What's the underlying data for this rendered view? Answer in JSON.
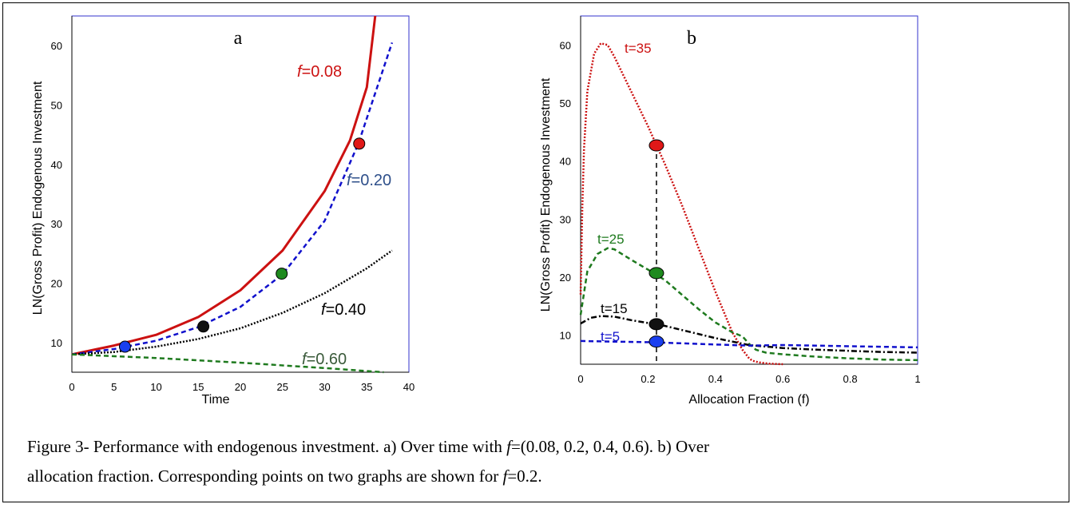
{
  "chart_data": [
    {
      "type": "line",
      "panel_label": "a",
      "xlabel": "Time",
      "ylabel": "LN(Gross Profit) Endogenous Investment",
      "xlim": [
        0,
        40
      ],
      "ylim": [
        5,
        65
      ],
      "xticks": [
        "0",
        "5",
        "10",
        "15",
        "20",
        "25",
        "30",
        "35",
        "40"
      ],
      "yticks": [
        "10",
        "20",
        "30",
        "40",
        "50",
        "60"
      ],
      "series": [
        {
          "name": "f=0.08",
          "label_prefix": "f",
          "label_value": "=0.08",
          "color": "#cc1111",
          "style": "solid",
          "x": [
            0,
            5,
            10,
            15,
            20,
            25,
            30,
            33,
            35,
            36
          ],
          "y": [
            8.0,
            9.5,
            11.3,
            14.3,
            18.8,
            25.5,
            35.5,
            44.0,
            53.0,
            65.0
          ]
        },
        {
          "name": "f=0.20",
          "label_prefix": "f",
          "label_value": "=0.20",
          "color": "#1111cc",
          "style": "dashed",
          "x": [
            0,
            5,
            10,
            15,
            20,
            25,
            30,
            34,
            38
          ],
          "y": [
            8.0,
            8.9,
            10.3,
            12.6,
            16.0,
            21.5,
            30.5,
            43.5,
            60.5
          ]
        },
        {
          "name": "f=0.40",
          "label_prefix": "f",
          "label_value": "=0.40",
          "color": "#000000",
          "style": "dotted",
          "x": [
            0,
            5,
            10,
            15,
            20,
            25,
            30,
            35,
            38
          ],
          "y": [
            8.0,
            8.4,
            9.3,
            10.6,
            12.4,
            15.0,
            18.3,
            22.5,
            25.5
          ]
        },
        {
          "name": "f=0.60",
          "label_prefix": "f",
          "label_value": "=0.60",
          "color": "#1e7a1e",
          "style": "dashed",
          "x": [
            0,
            10,
            20,
            30,
            37
          ],
          "y": [
            8.0,
            7.4,
            6.6,
            5.7,
            5.0
          ]
        }
      ],
      "markers": [
        {
          "x": 6.3,
          "y": 9.3,
          "color": "#1a3ff0"
        },
        {
          "x": 15.6,
          "y": 12.7,
          "color": "#111111"
        },
        {
          "x": 24.9,
          "y": 21.6,
          "color": "#1e8a1e"
        },
        {
          "x": 34.1,
          "y": 43.5,
          "color": "#e01818"
        }
      ]
    },
    {
      "type": "line",
      "panel_label": "b",
      "xlabel": "Allocation Fraction (f)",
      "ylabel": "LN(Gross Profit) Endogenous Investment",
      "xlim": [
        0,
        1
      ],
      "ylim": [
        5,
        65
      ],
      "xticks": [
        "0",
        "0.2",
        "0.4",
        "0.6",
        "0.8",
        "1"
      ],
      "yticks": [
        "10",
        "20",
        "30",
        "40",
        "50",
        "60"
      ],
      "series": [
        {
          "name": "t=35",
          "color": "#cc1111",
          "style": "dotted",
          "x": [
            0,
            0.005,
            0.01,
            0.02,
            0.04,
            0.06,
            0.08,
            0.1,
            0.15,
            0.2,
            0.25,
            0.3,
            0.35,
            0.4,
            0.45,
            0.48,
            0.5,
            0.51,
            0.53,
            0.56,
            0.6
          ],
          "y": [
            17.0,
            32.0,
            42.0,
            52.0,
            58.5,
            60.3,
            60.0,
            58.0,
            52.0,
            46.0,
            39.5,
            32.5,
            25.0,
            17.5,
            10.5,
            7.5,
            6.0,
            5.6,
            5.3,
            5.1,
            5.0
          ]
        },
        {
          "name": "t=25",
          "color": "#1e7a1e",
          "style": "dashed",
          "x": [
            0,
            0.02,
            0.05,
            0.08,
            0.1,
            0.15,
            0.2,
            0.25,
            0.3,
            0.35,
            0.4,
            0.45,
            0.48,
            0.5,
            0.52,
            0.55,
            0.6,
            0.7,
            0.8,
            0.9,
            1.0
          ],
          "y": [
            13.5,
            21.0,
            24.0,
            25.0,
            24.8,
            23.0,
            21.3,
            19.5,
            17.0,
            14.5,
            12.2,
            10.5,
            9.8,
            8.5,
            7.5,
            7.0,
            6.7,
            6.3,
            6.0,
            5.8,
            5.7
          ]
        },
        {
          "name": "t=15",
          "color": "#000000",
          "style": "dashdot",
          "x": [
            0,
            0.03,
            0.06,
            0.1,
            0.15,
            0.2,
            0.25,
            0.3,
            0.4,
            0.5,
            0.6,
            0.7,
            0.8,
            0.9,
            1.0
          ],
          "y": [
            12.0,
            13.0,
            13.3,
            13.2,
            12.6,
            12.1,
            11.6,
            10.9,
            9.5,
            8.3,
            7.8,
            7.5,
            7.3,
            7.1,
            7.0
          ]
        },
        {
          "name": "t=5",
          "color": "#1111cc",
          "style": "dashed",
          "x": [
            0,
            0.1,
            0.2,
            0.3,
            0.4,
            0.5,
            0.6,
            0.7,
            0.8,
            0.9,
            1.0
          ],
          "y": [
            9.0,
            8.9,
            8.8,
            8.6,
            8.4,
            8.2,
            8.3,
            8.2,
            8.1,
            8.0,
            7.9
          ]
        }
      ],
      "markers": [
        {
          "x": 0.225,
          "y": 42.7,
          "color": "#e01818"
        },
        {
          "x": 0.225,
          "y": 20.7,
          "color": "#1e8a1e"
        },
        {
          "x": 0.225,
          "y": 11.9,
          "color": "#111111"
        },
        {
          "x": 0.225,
          "y": 8.9,
          "color": "#1a3ff0"
        }
      ],
      "reference_line_x": 0.225
    }
  ],
  "caption": {
    "line1_a": "Figure 3- Performance with endogenous investment. a) Over time with ",
    "line1_f": "f",
    "line1_b": "=(0.08, 0.2, 0.4, 0.6). b) Over",
    "line2_a": "allocation fraction. Corresponding points on two graphs are shown for ",
    "line2_f": "f",
    "line2_b": "=0.2."
  },
  "colors": {
    "axis_frame": "#3333cc",
    "axis_line": "#000000"
  }
}
